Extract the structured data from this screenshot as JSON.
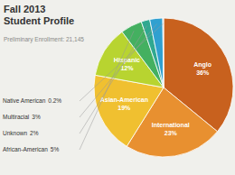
{
  "chart_data": {
    "type": "pie",
    "title": "Fall 2013\nStudent Profile",
    "subtitle": "Preliminary Enrollment: 21,145",
    "categories": [
      "Anglo",
      "International",
      "Asian-American",
      "Hispanic",
      "African-American",
      "Unknown",
      "Multiracial",
      "Native American"
    ],
    "values": [
      36,
      23,
      19,
      12,
      5,
      2,
      3,
      0.2
    ],
    "value_labels": [
      "36%",
      "23%",
      "19%",
      "12%",
      "5%",
      "2%",
      "3%",
      "0.2%"
    ],
    "colors": [
      "#c8611e",
      "#e89030",
      "#f0c030",
      "#b8d430",
      "#44b060",
      "#30a890",
      "#30a0d0",
      "#c8c8c8"
    ]
  }
}
